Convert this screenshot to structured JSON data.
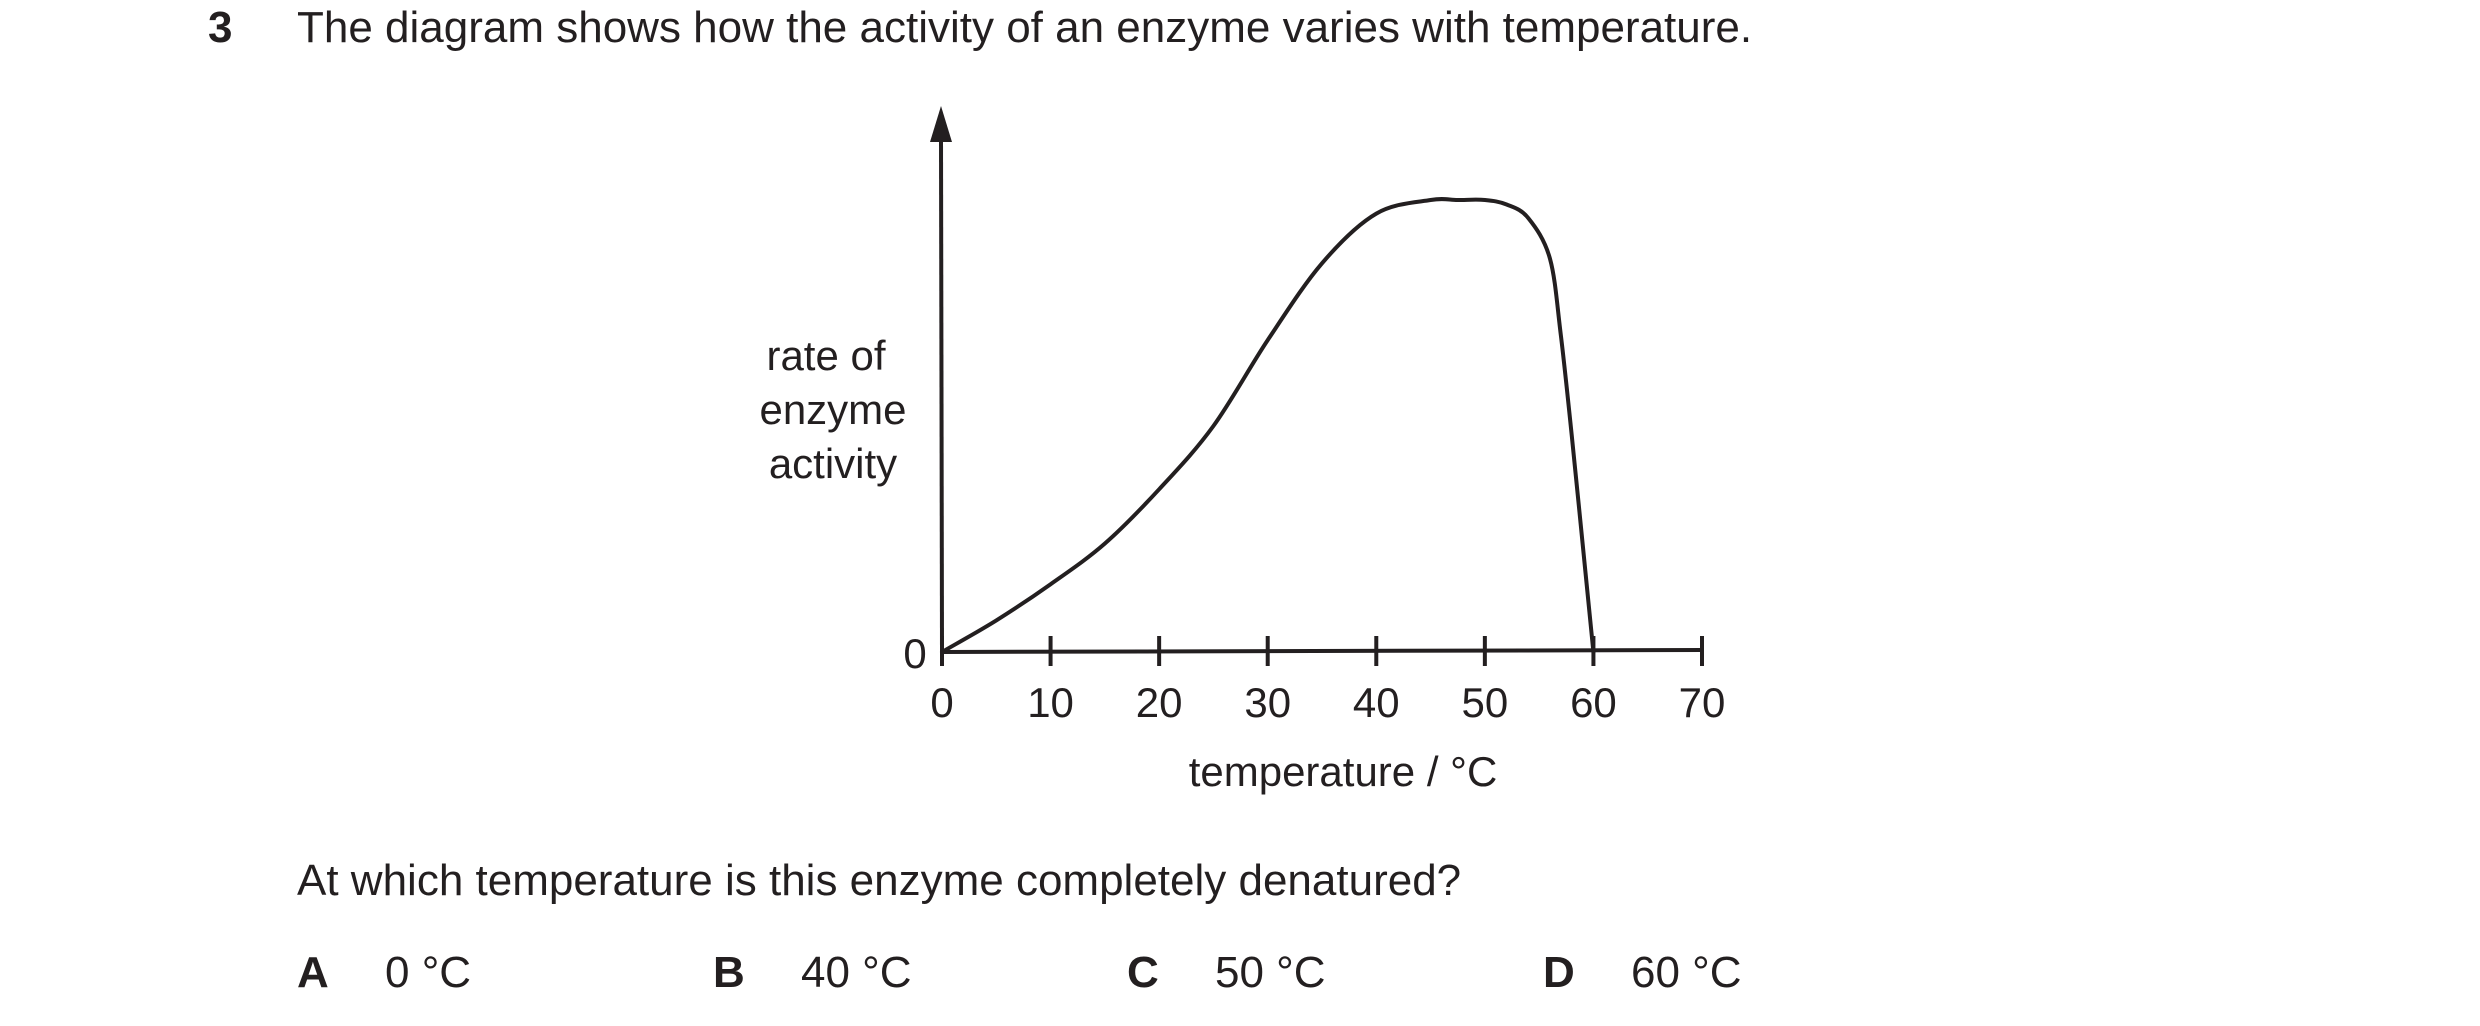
{
  "question": {
    "number": "3",
    "stem": "The diagram shows how the activity of an enzyme varies with temperature.",
    "prompt": "At which temperature is this enzyme completely denatured?",
    "options": [
      {
        "letter": "A",
        "text": "0 °C"
      },
      {
        "letter": "B",
        "text": "40 °C"
      },
      {
        "letter": "C",
        "text": "50 °C"
      },
      {
        "letter": "D",
        "text": "60 °C"
      }
    ]
  },
  "chart_data": {
    "type": "line",
    "ylabel_lines": [
      "rate of",
      "enzyme",
      "activity"
    ],
    "xlabel": "temperature / °C",
    "y_origin_label": "0",
    "xticks": [
      0,
      10,
      20,
      30,
      40,
      50,
      60,
      70
    ],
    "xtick_labels": [
      "0",
      "10",
      "20",
      "30",
      "40",
      "50",
      "60",
      "70"
    ],
    "xlim": [
      0,
      70
    ],
    "ylim": [
      0,
      1.1
    ],
    "y_ticks_shown": false,
    "grid": false,
    "series": [
      {
        "x": [
          0,
          5,
          10,
          15,
          20,
          25,
          30,
          35,
          40,
          45,
          47.5,
          50,
          52,
          54,
          56,
          57,
          58,
          59,
          60
        ],
        "values": [
          0,
          0.07,
          0.15,
          0.24,
          0.36,
          0.5,
          0.69,
          0.86,
          0.97,
          1.0,
          1.0,
          1.0,
          0.99,
          0.96,
          0.87,
          0.7,
          0.48,
          0.24,
          0
        ]
      }
    ]
  }
}
